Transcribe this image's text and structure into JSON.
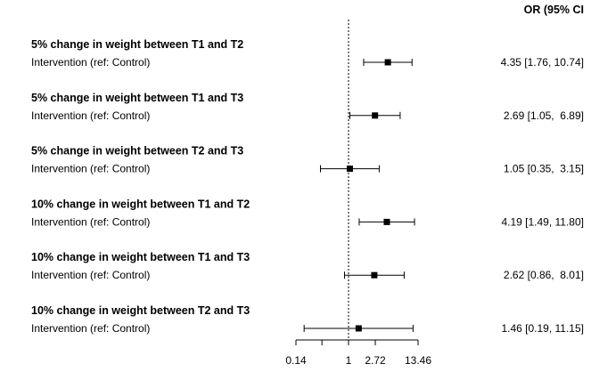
{
  "chart_data": {
    "type": "forest",
    "column_header": "OR (95% CI",
    "x_scale": "log",
    "xlim": [
      0.14,
      13.46
    ],
    "x_ticks": [
      0.14,
      0.37,
      1,
      2.72,
      13.46
    ],
    "x_tick_labels": [
      "0.14",
      "",
      "1",
      "2.72",
      "13.46"
    ],
    "reference_line": 1,
    "rows": [
      {
        "heading": "5% change in weight between T1 and T2",
        "label": "Intervention (ref: Control)",
        "or": 4.35,
        "lower": 1.76,
        "upper": 10.74,
        "ci_text": "4.35 [1.76, 10.74]"
      },
      {
        "heading": "5% change in weight between T1 and T3",
        "label": "Intervention (ref: Control)",
        "or": 2.69,
        "lower": 1.05,
        "upper": 6.89,
        "ci_text": "2.69 [1.05,  6.89]"
      },
      {
        "heading": "5% change in weight between T2 and T3",
        "label": "Intervention (ref: Control)",
        "or": 1.05,
        "lower": 0.35,
        "upper": 3.15,
        "ci_text": "1.05 [0.35,  3.15]"
      },
      {
        "heading": "10% change in weight between T1 and T2",
        "label": "Intervention (ref: Control)",
        "or": 4.19,
        "lower": 1.49,
        "upper": 11.8,
        "ci_text": "4.19 [1.49, 11.80]"
      },
      {
        "heading": "10% change in weight between T1 and T3",
        "label": "Intervention (ref: Control)",
        "or": 2.62,
        "lower": 0.86,
        "upper": 8.01,
        "ci_text": "2.62 [0.86,  8.01]"
      },
      {
        "heading": "10% change in weight between T2 and T3",
        "label": "Intervention (ref: Control)",
        "or": 1.46,
        "lower": 0.19,
        "upper": 11.15,
        "ci_text": "1.46 [0.19, 11.15]"
      }
    ]
  }
}
